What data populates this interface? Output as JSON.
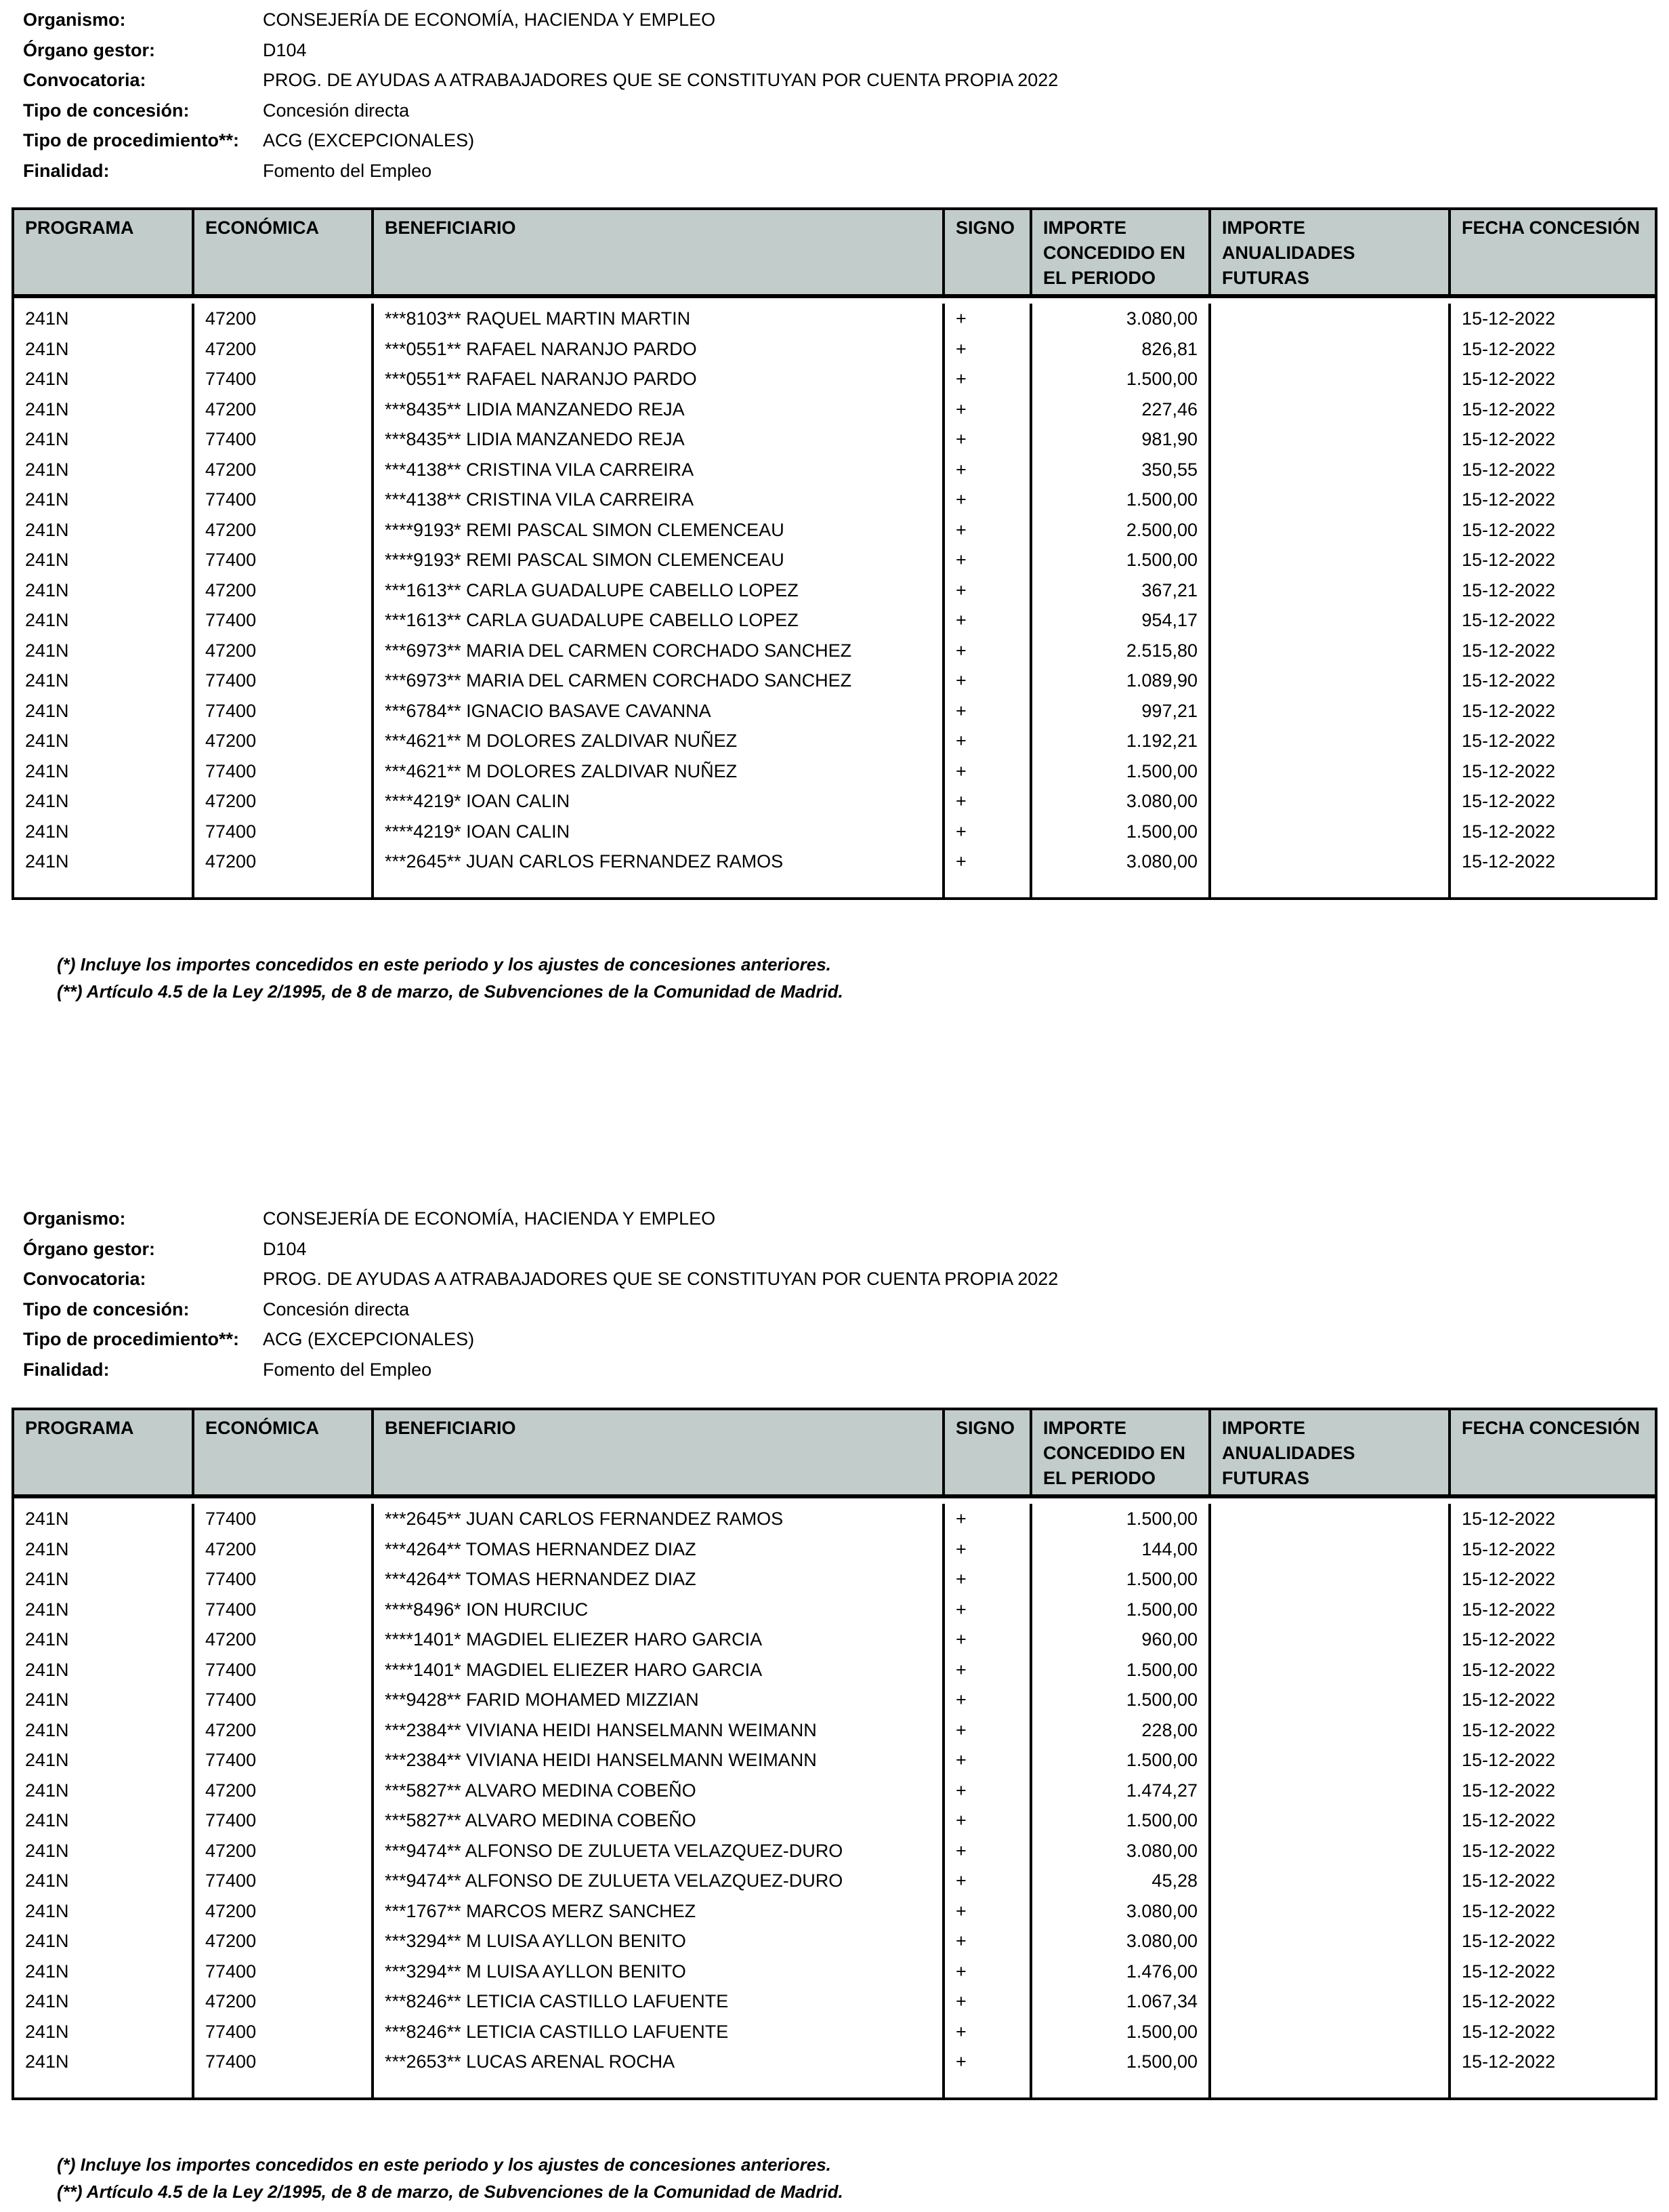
{
  "meta_labels": {
    "organismo": "Organismo:",
    "organo": "Órgano gestor:",
    "convocatoria": "Convocatoria:",
    "tipo_concesion": "Tipo de concesión:",
    "tipo_procedimiento": "Tipo de procedimiento**:",
    "finalidad": "Finalidad:"
  },
  "meta_values": {
    "organismo": "CONSEJERÍA DE ECONOMÍA, HACIENDA Y EMPLEO",
    "organo": "D104",
    "convocatoria": "PROG. DE AYUDAS A ATRABAJADORES QUE SE CONSTITUYAN POR CUENTA PROPIA 2022",
    "tipo_concesion": "Concesión directa",
    "tipo_procedimiento": "ACG (EXCEPCIONALES)",
    "finalidad": "Fomento del Empleo"
  },
  "columns": [
    "PROGRAMA",
    "ECONÓMICA",
    "BENEFICIARIO",
    "SIGNO",
    "IMPORTE CONCEDIDO EN EL PERIODO",
    "IMPORTE ANUALIDADES FUTURAS",
    "FECHA CONCESIÓN"
  ],
  "header_color": "#c2cccb",
  "footnotes": [
    "(*) Incluye los importes concedidos en este periodo y los ajustes de concesiones anteriores.",
    "(**) Artículo 4.5 de la Ley 2/1995, de 8 de marzo, de Subvenciones de la Comunidad de Madrid."
  ],
  "pages": [
    {
      "rows": [
        [
          "241N",
          "47200",
          "***8103** RAQUEL MARTIN MARTIN",
          "+",
          "3.080,00",
          "",
          "15-12-2022"
        ],
        [
          "241N",
          "47200",
          "***0551** RAFAEL NARANJO PARDO",
          "+",
          "826,81",
          "",
          "15-12-2022"
        ],
        [
          "241N",
          "77400",
          "***0551** RAFAEL NARANJO PARDO",
          "+",
          "1.500,00",
          "",
          "15-12-2022"
        ],
        [
          "241N",
          "47200",
          "***8435** LIDIA MANZANEDO REJA",
          "+",
          "227,46",
          "",
          "15-12-2022"
        ],
        [
          "241N",
          "77400",
          "***8435** LIDIA MANZANEDO REJA",
          "+",
          "981,90",
          "",
          "15-12-2022"
        ],
        [
          "241N",
          "47200",
          "***4138** CRISTINA VILA CARREIRA",
          "+",
          "350,55",
          "",
          "15-12-2022"
        ],
        [
          "241N",
          "77400",
          "***4138** CRISTINA VILA CARREIRA",
          "+",
          "1.500,00",
          "",
          "15-12-2022"
        ],
        [
          "241N",
          "47200",
          "****9193* REMI PASCAL SIMON CLEMENCEAU",
          "+",
          "2.500,00",
          "",
          "15-12-2022"
        ],
        [
          "241N",
          "77400",
          "****9193* REMI PASCAL SIMON CLEMENCEAU",
          "+",
          "1.500,00",
          "",
          "15-12-2022"
        ],
        [
          "241N",
          "47200",
          "***1613** CARLA GUADALUPE CABELLO LOPEZ",
          "+",
          "367,21",
          "",
          "15-12-2022"
        ],
        [
          "241N",
          "77400",
          "***1613** CARLA GUADALUPE CABELLO LOPEZ",
          "+",
          "954,17",
          "",
          "15-12-2022"
        ],
        [
          "241N",
          "47200",
          "***6973** MARIA DEL CARMEN CORCHADO SANCHEZ",
          "+",
          "2.515,80",
          "",
          "15-12-2022"
        ],
        [
          "241N",
          "77400",
          "***6973** MARIA DEL CARMEN CORCHADO SANCHEZ",
          "+",
          "1.089,90",
          "",
          "15-12-2022"
        ],
        [
          "241N",
          "77400",
          "***6784** IGNACIO BASAVE CAVANNA",
          "+",
          "997,21",
          "",
          "15-12-2022"
        ],
        [
          "241N",
          "47200",
          "***4621** M DOLORES ZALDIVAR NUÑEZ",
          "+",
          "1.192,21",
          "",
          "15-12-2022"
        ],
        [
          "241N",
          "77400",
          "***4621** M DOLORES ZALDIVAR NUÑEZ",
          "+",
          "1.500,00",
          "",
          "15-12-2022"
        ],
        [
          "241N",
          "47200",
          "****4219* IOAN CALIN",
          "+",
          "3.080,00",
          "",
          "15-12-2022"
        ],
        [
          "241N",
          "77400",
          "****4219* IOAN CALIN",
          "+",
          "1.500,00",
          "",
          "15-12-2022"
        ],
        [
          "241N",
          "47200",
          "***2645** JUAN CARLOS FERNANDEZ RAMOS",
          "+",
          "3.080,00",
          "",
          "15-12-2022"
        ]
      ]
    },
    {
      "rows": [
        [
          "241N",
          "77400",
          "***2645** JUAN CARLOS FERNANDEZ RAMOS",
          "+",
          "1.500,00",
          "",
          "15-12-2022"
        ],
        [
          "241N",
          "47200",
          "***4264** TOMAS HERNANDEZ DIAZ",
          "+",
          "144,00",
          "",
          "15-12-2022"
        ],
        [
          "241N",
          "77400",
          "***4264** TOMAS HERNANDEZ DIAZ",
          "+",
          "1.500,00",
          "",
          "15-12-2022"
        ],
        [
          "241N",
          "77400",
          "****8496* ION HURCIUC",
          "+",
          "1.500,00",
          "",
          "15-12-2022"
        ],
        [
          "241N",
          "47200",
          "****1401* MAGDIEL ELIEZER HARO GARCIA",
          "+",
          "960,00",
          "",
          "15-12-2022"
        ],
        [
          "241N",
          "77400",
          "****1401* MAGDIEL ELIEZER HARO GARCIA",
          "+",
          "1.500,00",
          "",
          "15-12-2022"
        ],
        [
          "241N",
          "77400",
          "***9428** FARID MOHAMED MIZZIAN",
          "+",
          "1.500,00",
          "",
          "15-12-2022"
        ],
        [
          "241N",
          "47200",
          "***2384** VIVIANA HEIDI HANSELMANN WEIMANN",
          "+",
          "228,00",
          "",
          "15-12-2022"
        ],
        [
          "241N",
          "77400",
          "***2384** VIVIANA HEIDI HANSELMANN WEIMANN",
          "+",
          "1.500,00",
          "",
          "15-12-2022"
        ],
        [
          "241N",
          "47200",
          "***5827** ALVARO MEDINA COBEÑO",
          "+",
          "1.474,27",
          "",
          "15-12-2022"
        ],
        [
          "241N",
          "77400",
          "***5827** ALVARO MEDINA COBEÑO",
          "+",
          "1.500,00",
          "",
          "15-12-2022"
        ],
        [
          "241N",
          "47200",
          "***9474** ALFONSO DE ZULUETA VELAZQUEZ-DURO",
          "+",
          "3.080,00",
          "",
          "15-12-2022"
        ],
        [
          "241N",
          "77400",
          "***9474** ALFONSO DE ZULUETA VELAZQUEZ-DURO",
          "+",
          "45,28",
          "",
          "15-12-2022"
        ],
        [
          "241N",
          "47200",
          "***1767** MARCOS MERZ SANCHEZ",
          "+",
          "3.080,00",
          "",
          "15-12-2022"
        ],
        [
          "241N",
          "47200",
          "***3294** M LUISA AYLLON BENITO",
          "+",
          "3.080,00",
          "",
          "15-12-2022"
        ],
        [
          "241N",
          "77400",
          "***3294** M LUISA AYLLON BENITO",
          "+",
          "1.476,00",
          "",
          "15-12-2022"
        ],
        [
          "241N",
          "47200",
          "***8246** LETICIA CASTILLO LAFUENTE",
          "+",
          "1.067,34",
          "",
          "15-12-2022"
        ],
        [
          "241N",
          "77400",
          "***8246** LETICIA CASTILLO LAFUENTE",
          "+",
          "1.500,00",
          "",
          "15-12-2022"
        ],
        [
          "241N",
          "77400",
          "***2653** LUCAS ARENAL ROCHA",
          "+",
          "1.500,00",
          "",
          "15-12-2022"
        ]
      ]
    }
  ]
}
